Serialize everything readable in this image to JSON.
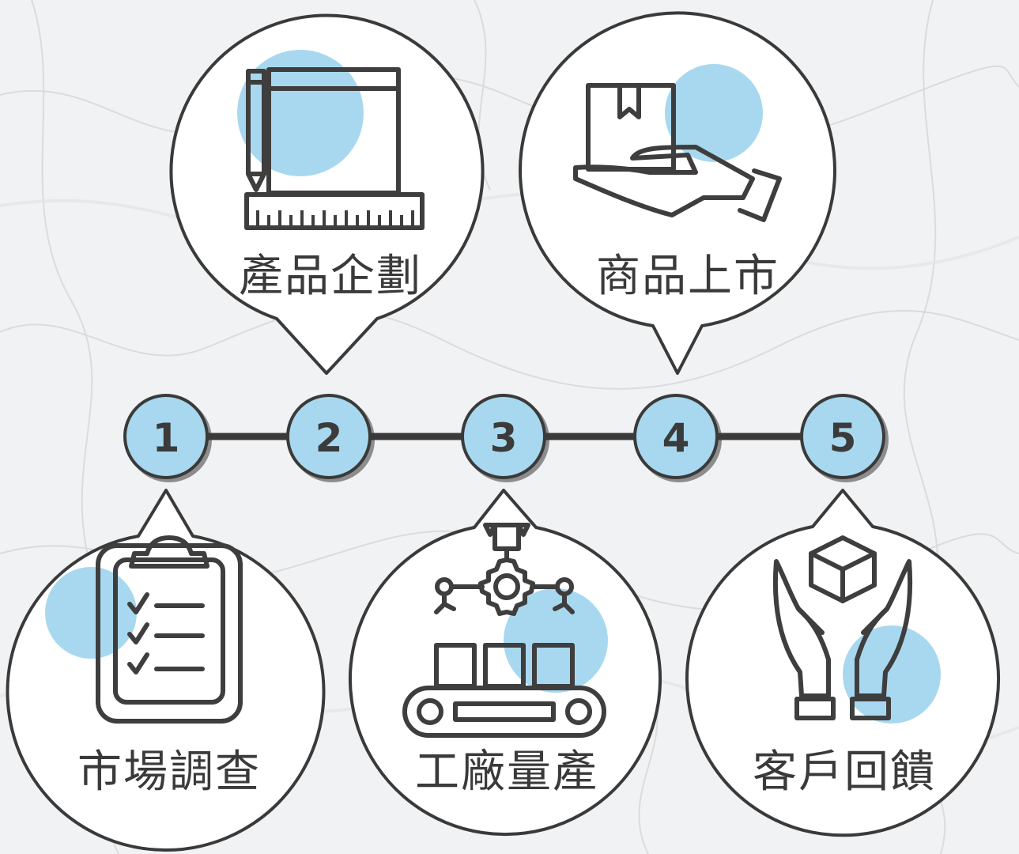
{
  "colors": {
    "accent": "#a8d8ef",
    "outline": "#3a3a3a",
    "background": "#f1f2f3"
  },
  "steps": [
    {
      "number": "1",
      "label": "市場調查",
      "icon": "clipboard-checklist-icon"
    },
    {
      "number": "2",
      "label": "產品企劃",
      "icon": "pencil-ruler-board-icon"
    },
    {
      "number": "3",
      "label": "工廠量產",
      "icon": "robot-conveyor-icon"
    },
    {
      "number": "4",
      "label": "商品上市",
      "icon": "hand-holding-box-icon"
    },
    {
      "number": "5",
      "label": "客戶回饋",
      "icon": "hands-with-box-icon"
    }
  ]
}
